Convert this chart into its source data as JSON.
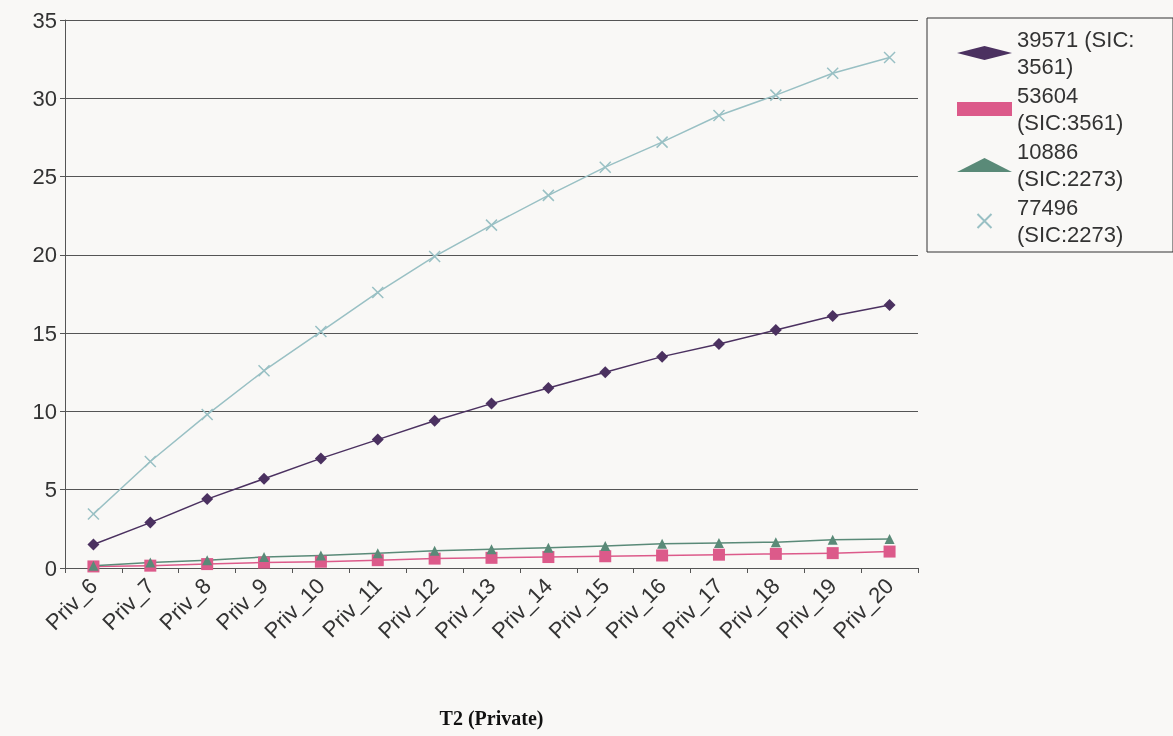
{
  "chart_data": {
    "type": "line",
    "xlabel": "T2 (Private)",
    "categories": [
      "Priv_6",
      "Priv_7",
      "Priv_8",
      "Priv_9",
      "Priv_10",
      "Priv_11",
      "Priv_12",
      "Priv_13",
      "Priv_14",
      "Priv_15",
      "Priv_16",
      "Priv_17",
      "Priv_18",
      "Priv_19",
      "Priv_20"
    ],
    "series": [
      {
        "name": "39571 (SIC: 3561)",
        "color": "#4b3160",
        "marker": "diamond",
        "values": [
          1.5,
          2.9,
          4.4,
          5.7,
          7.0,
          8.2,
          9.4,
          10.5,
          11.5,
          12.5,
          13.5,
          14.3,
          15.2,
          16.1,
          16.8
        ]
      },
      {
        "name": "53604 (SIC:3561)",
        "color": "#dc5a8a",
        "marker": "square",
        "values": [
          0.1,
          0.15,
          0.25,
          0.35,
          0.4,
          0.5,
          0.6,
          0.65,
          0.7,
          0.75,
          0.8,
          0.85,
          0.9,
          0.95,
          1.05
        ]
      },
      {
        "name": "10886 (SIC:2273)",
        "color": "#5a8a78",
        "marker": "triangle",
        "values": [
          0.15,
          0.35,
          0.5,
          0.7,
          0.8,
          0.95,
          1.1,
          1.2,
          1.3,
          1.4,
          1.55,
          1.6,
          1.65,
          1.8,
          1.85
        ]
      },
      {
        "name": "77496 (SIC:2273)",
        "color": "#99c0c4",
        "marker": "cross",
        "values": [
          3.45,
          6.8,
          9.8,
          12.6,
          15.1,
          17.6,
          19.9,
          21.9,
          23.8,
          25.6,
          27.2,
          28.9,
          30.2,
          31.6,
          32.6
        ]
      }
    ],
    "ylim": [
      0,
      35
    ],
    "yticks": [
      0,
      5,
      10,
      15,
      20,
      25,
      30,
      35
    ],
    "grid": "y",
    "legend": "top right",
    "line_style": "solid"
  }
}
